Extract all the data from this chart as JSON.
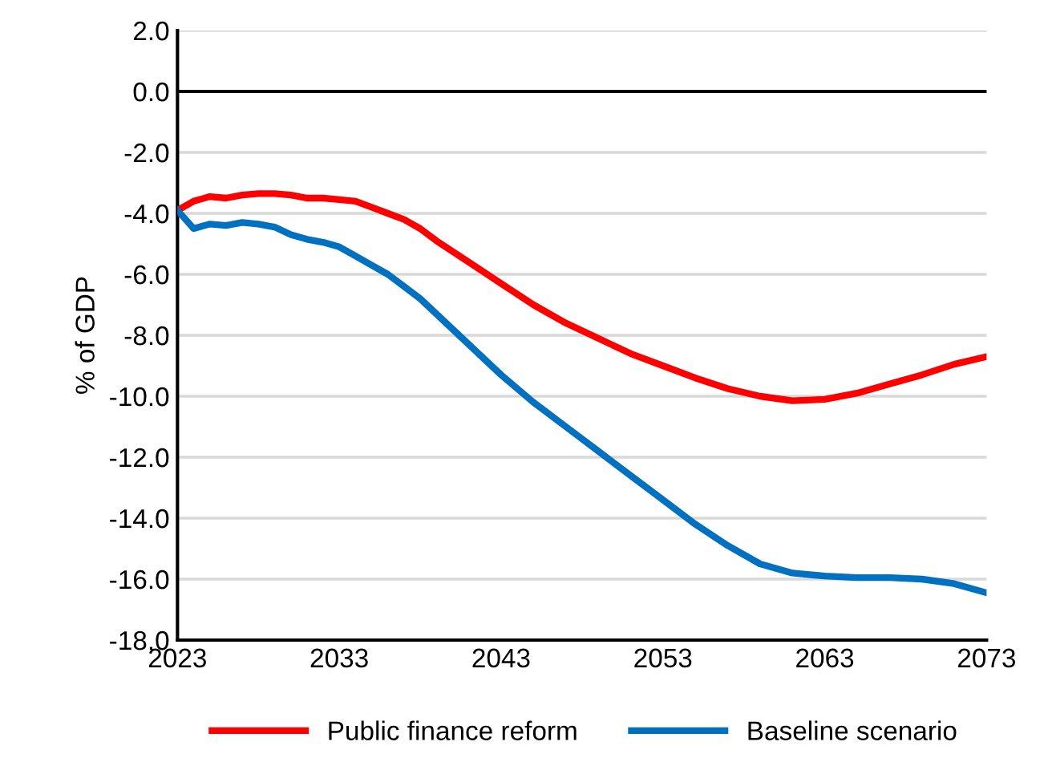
{
  "chart_data": {
    "type": "line",
    "ylabel": "% of GDP",
    "x": [
      2023,
      2024,
      2025,
      2026,
      2027,
      2028,
      2029,
      2030,
      2031,
      2032,
      2033,
      2034,
      2035,
      2036,
      2037,
      2038,
      2039,
      2041,
      2043,
      2045,
      2047,
      2049,
      2051,
      2053,
      2055,
      2057,
      2059,
      2061,
      2063,
      2065,
      2067,
      2069,
      2071,
      2073
    ],
    "series": [
      {
        "name": "Public finance reform",
        "color": "#ff0000",
        "values": [
          -3.9,
          -3.6,
          -3.45,
          -3.5,
          -3.4,
          -3.35,
          -3.35,
          -3.4,
          -3.5,
          -3.5,
          -3.55,
          -3.6,
          -3.8,
          -4.0,
          -4.2,
          -4.5,
          -4.9,
          -5.6,
          -6.3,
          -7.0,
          -7.6,
          -8.1,
          -8.6,
          -9.0,
          -9.4,
          -9.75,
          -10.0,
          -10.15,
          -10.1,
          -9.9,
          -9.6,
          -9.3,
          -8.95,
          -8.7
        ]
      },
      {
        "name": "Baseline scenario",
        "color": "#0070c0",
        "values": [
          -3.9,
          -4.5,
          -4.35,
          -4.4,
          -4.3,
          -4.35,
          -4.45,
          -4.7,
          -4.85,
          -4.95,
          -5.1,
          -5.4,
          -5.7,
          -6.0,
          -6.4,
          -6.8,
          -7.3,
          -8.3,
          -9.3,
          -10.2,
          -11.0,
          -11.8,
          -12.6,
          -13.4,
          -14.2,
          -14.9,
          -15.5,
          -15.8,
          -15.9,
          -15.95,
          -15.95,
          -16.0,
          -16.15,
          -16.45
        ]
      }
    ],
    "xlim": [
      2023,
      2073
    ],
    "xticks": [
      2023,
      2033,
      2043,
      2053,
      2063,
      2073
    ],
    "ylim": [
      -18,
      2
    ],
    "yticks": [
      {
        "value": 2,
        "label": "2.0"
      },
      {
        "value": 0,
        "label": "0.0"
      },
      {
        "value": -2,
        "label": "-2.0"
      },
      {
        "value": -4,
        "label": "-4.0"
      },
      {
        "value": -6,
        "label": "-6.0"
      },
      {
        "value": -8,
        "label": "-8.0"
      },
      {
        "value": -10,
        "label": "-10.0"
      },
      {
        "value": -12,
        "label": "-12.0"
      },
      {
        "value": -14,
        "label": "-14.0"
      },
      {
        "value": -16,
        "label": "-16.0"
      },
      {
        "value": -18,
        "label": "-18.0"
      }
    ],
    "ref_lines": [
      {
        "axis": "y",
        "value": 0,
        "color": "#000000"
      }
    ],
    "grid": "y",
    "legend": "bottom",
    "marker": "none",
    "line_style": "solid"
  }
}
